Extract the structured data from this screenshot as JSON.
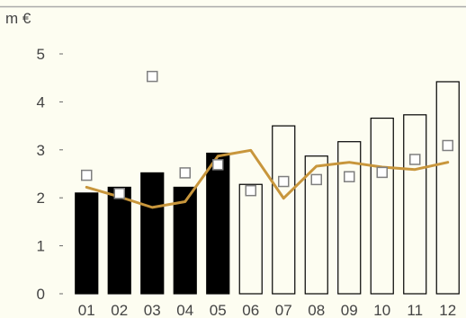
{
  "chart_data": {
    "type": "bar",
    "ylabel": "m €",
    "ylim": [
      0,
      5
    ],
    "yticks": [
      "0",
      "1",
      "2",
      "3",
      "4",
      "5"
    ],
    "categories": [
      "01",
      "02",
      "03",
      "04",
      "05",
      "06",
      "07",
      "08",
      "09",
      "10",
      "11",
      "12"
    ],
    "grid": false,
    "series": [
      {
        "kind": "bar",
        "values": [
          2.1,
          2.22,
          2.52,
          2.22,
          2.93,
          2.28,
          3.5,
          2.87,
          3.17,
          3.66,
          3.73,
          4.42
        ],
        "filled": [
          true,
          true,
          true,
          true,
          true,
          false,
          false,
          false,
          false,
          false,
          false,
          false
        ]
      },
      {
        "kind": "line",
        "values": [
          2.22,
          2.02,
          1.8,
          1.92,
          2.87,
          2.99,
          1.99,
          2.66,
          2.74,
          2.64,
          2.59,
          2.74
        ]
      },
      {
        "kind": "marker",
        "values": [
          2.47,
          2.09,
          4.53,
          2.52,
          2.69,
          2.15,
          2.34,
          2.38,
          2.44,
          2.53,
          2.8,
          3.09
        ]
      }
    ],
    "colors": {
      "background": "#fdfdf1",
      "bar_fill": "#000000",
      "bar_outline": "#000000",
      "line": "#c8963c",
      "marker_stroke": "#7f7f7f",
      "marker_fill": "#ffffff",
      "axis": "#666666",
      "top_rule": "#aaaaaa"
    }
  }
}
